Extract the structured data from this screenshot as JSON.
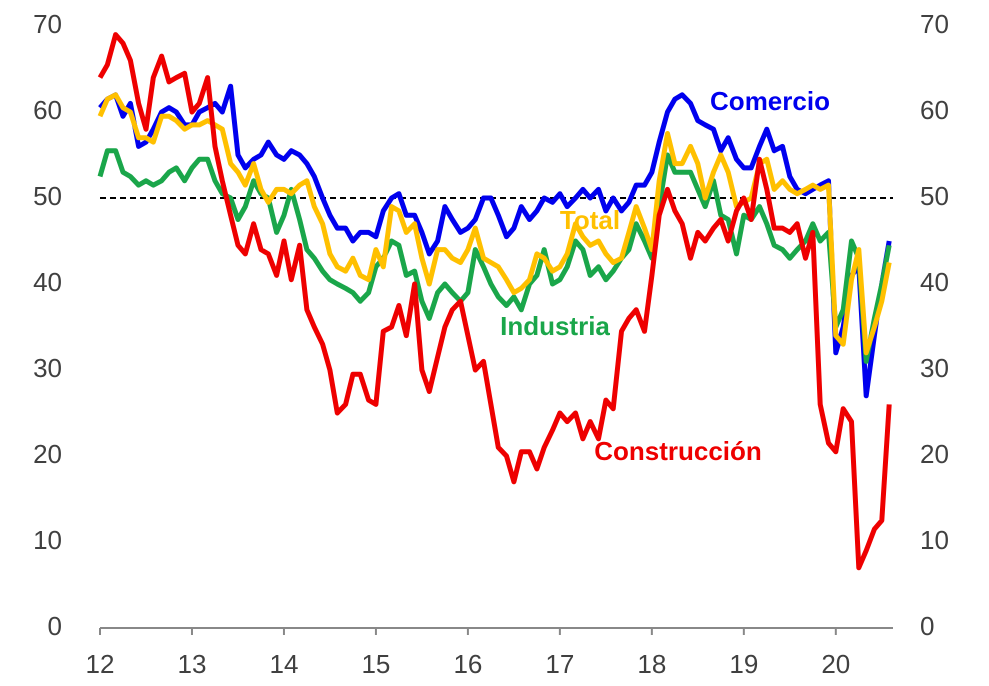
{
  "chart_data": {
    "type": "line",
    "x": [
      12.0,
      12.08,
      12.17,
      12.25,
      12.33,
      12.42,
      12.5,
      12.58,
      12.67,
      12.75,
      12.83,
      12.92,
      13.0,
      13.08,
      13.17,
      13.25,
      13.33,
      13.42,
      13.5,
      13.58,
      13.67,
      13.75,
      13.83,
      13.92,
      14.0,
      14.08,
      14.17,
      14.25,
      14.33,
      14.42,
      14.5,
      14.58,
      14.67,
      14.75,
      14.83,
      14.92,
      15.0,
      15.08,
      15.17,
      15.25,
      15.33,
      15.42,
      15.5,
      15.58,
      15.67,
      15.75,
      15.83,
      15.92,
      16.0,
      16.08,
      16.17,
      16.25,
      16.33,
      16.42,
      16.5,
      16.58,
      16.67,
      16.75,
      16.83,
      16.92,
      17.0,
      17.08,
      17.17,
      17.25,
      17.33,
      17.42,
      17.5,
      17.58,
      17.67,
      17.75,
      17.83,
      17.92,
      18.0,
      18.08,
      18.17,
      18.25,
      18.33,
      18.42,
      18.5,
      18.58,
      18.67,
      18.75,
      18.83,
      18.92,
      19.0,
      19.08,
      19.17,
      19.25,
      19.33,
      19.42,
      19.5,
      19.58,
      19.67,
      19.75,
      19.83,
      19.92,
      20.0,
      20.08,
      20.17,
      20.25,
      20.33,
      20.42,
      20.5,
      20.58
    ],
    "series": [
      {
        "name": "Comercio",
        "color": "#0000ee",
        "values": [
          60.5,
          61.5,
          62,
          59.5,
          61,
          56,
          56.5,
          58,
          60,
          60.5,
          60,
          58.5,
          58.5,
          60,
          60.5,
          61,
          60,
          63,
          55,
          53.5,
          54.5,
          55,
          56.5,
          55,
          54.5,
          55.5,
          55,
          54,
          52.5,
          50,
          48,
          46.5,
          46.5,
          45,
          46,
          46,
          45.5,
          48.5,
          50,
          50.5,
          48,
          48,
          46,
          43.5,
          45,
          49,
          47.5,
          46,
          46.5,
          47.5,
          50,
          50,
          48,
          45.5,
          46.5,
          49,
          47.5,
          48.5,
          50,
          49.5,
          50.5,
          49,
          50,
          51,
          50,
          51,
          48.5,
          50,
          48.5,
          49.5,
          51.5,
          51.5,
          53,
          56.5,
          60,
          61.5,
          62,
          61,
          59,
          58.5,
          58,
          55.5,
          57,
          54.5,
          53.5,
          53.5,
          56,
          58,
          55.5,
          56,
          52.5,
          51,
          50.5,
          51,
          51.5,
          52,
          32,
          35,
          41,
          42,
          27,
          34,
          40,
          45
        ]
      },
      {
        "name": "Industria",
        "color": "#1aa64a",
        "values": [
          52.5,
          55.5,
          55.5,
          53,
          52.5,
          51.5,
          52,
          51.5,
          52,
          53,
          53.5,
          52,
          53.5,
          54.5,
          54.5,
          52,
          50.5,
          50,
          47.5,
          49,
          52,
          50.5,
          50,
          46,
          48,
          51,
          47.5,
          44,
          43,
          41.5,
          40.5,
          40,
          39.5,
          39,
          38,
          39,
          42,
          43,
          45,
          44.5,
          41,
          41.5,
          38,
          36,
          39,
          40,
          39,
          38,
          39,
          44,
          42,
          40,
          38.5,
          37.5,
          38.5,
          37,
          40,
          41,
          44,
          40,
          40.5,
          42,
          45,
          44,
          41,
          42,
          40.5,
          41.5,
          43,
          44,
          47,
          45,
          43,
          49,
          55,
          53,
          53,
          53,
          51,
          49,
          52,
          48,
          47.5,
          43.5,
          48,
          47.5,
          49,
          47,
          44.5,
          44,
          43,
          44,
          45,
          47,
          45,
          46,
          35,
          37,
          45,
          43,
          31,
          36,
          40,
          44.5
        ]
      },
      {
        "name": "Total",
        "color": "#ffc000",
        "values": [
          59.5,
          61.5,
          62,
          60.5,
          60,
          57,
          57,
          56.5,
          59.5,
          59.5,
          59,
          58,
          58.5,
          58.5,
          59,
          58.5,
          58,
          54,
          53,
          51.5,
          54,
          51,
          49.5,
          51,
          51,
          50.5,
          51.5,
          52,
          49,
          47,
          43.5,
          42,
          41.5,
          43,
          41,
          40.5,
          44,
          42,
          49,
          48.5,
          46,
          47,
          43,
          40,
          44,
          44,
          43,
          42.5,
          44,
          46.5,
          43,
          42.5,
          42,
          40.5,
          39,
          39.5,
          40.5,
          43.5,
          43,
          41.5,
          42,
          43.5,
          47,
          45.5,
          44.5,
          45,
          43.5,
          42.5,
          43,
          46,
          49,
          46.5,
          44,
          52,
          57.5,
          54,
          54,
          56,
          54,
          50,
          53,
          55,
          53,
          49,
          49.5,
          50,
          54,
          54.5,
          51,
          52,
          51,
          50.5,
          51,
          51.5,
          51,
          51.5,
          34,
          33,
          40.5,
          44,
          32,
          35,
          38,
          42.5
        ]
      },
      {
        "name": "Construcción",
        "color": "#ee0000",
        "values": [
          64,
          65.5,
          69,
          68,
          66,
          61,
          58,
          64,
          66.5,
          63.5,
          64,
          64.5,
          60,
          61,
          64,
          56,
          52,
          48,
          44.5,
          43.5,
          47,
          44,
          43.5,
          41,
          45,
          40.5,
          44.5,
          37,
          35,
          33,
          30,
          25,
          26,
          29.5,
          29.5,
          26.5,
          26,
          34.5,
          35,
          37.5,
          34,
          40,
          30,
          27.5,
          31.5,
          35,
          37,
          38,
          34,
          30,
          31,
          26,
          21,
          20,
          17,
          20.5,
          20.5,
          18.5,
          21,
          23,
          25,
          24,
          25,
          22,
          24,
          22,
          26.5,
          25.5,
          34.5,
          36,
          37,
          34.5,
          41,
          48,
          51,
          48.5,
          47,
          43,
          46,
          45,
          46.5,
          47.5,
          45,
          48.5,
          50,
          47.5,
          54.5,
          51,
          46.5,
          46.5,
          46,
          47,
          43,
          46,
          26,
          21.5,
          20.5,
          25.5,
          24,
          7,
          9,
          11.5,
          12.5,
          26
        ]
      }
    ],
    "xlim": [
      12,
      20.6
    ],
    "xticks": [
      12,
      13,
      14,
      15,
      16,
      17,
      18,
      19,
      20
    ],
    "ylim": [
      0,
      70
    ],
    "yticks": [
      0,
      10,
      20,
      30,
      40,
      50,
      60,
      70
    ],
    "y2lim": [
      0,
      70
    ],
    "y2ticks": [
      0,
      10,
      20,
      30,
      40,
      50,
      60,
      70
    ],
    "reference_line": 50,
    "grid": false
  }
}
